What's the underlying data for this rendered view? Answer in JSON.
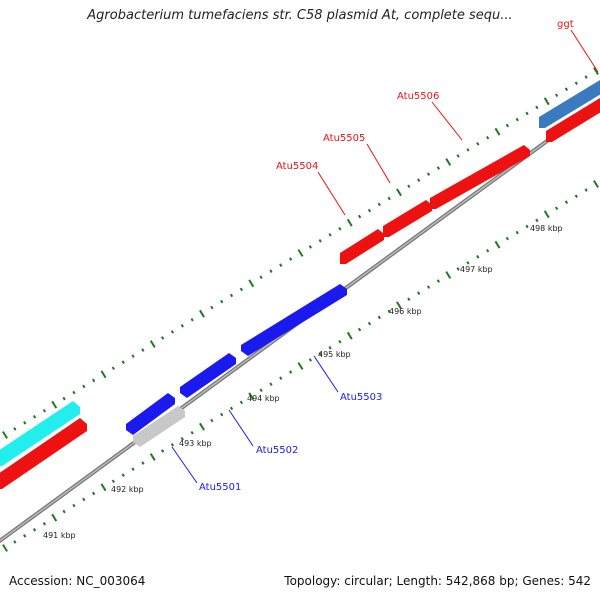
{
  "title": "Agrobacterium tumefaciens str. C58 plasmid At, complete sequ...",
  "footer": {
    "accession": "Accession: NC_003064",
    "summary": "Topology: circular; Length: 542,868 bp; Genes: 542"
  },
  "colors": {
    "forward_cds": "#ee1111",
    "reverse_cds": "#1a1aee",
    "rna": "#3a7bbf",
    "other": "#c8c8c8",
    "misc": "#22eeee",
    "backbone": "#888888",
    "ticks": "#1f7a1f"
  },
  "scale_labels": [
    "491 kbp",
    "492 kbp",
    "493 kbp",
    "494 kbp",
    "495 kbp",
    "496 kbp",
    "497 kbp",
    "498 kbp"
  ],
  "gene_labels": [
    {
      "name": "Atu5506",
      "strand": "forward"
    },
    {
      "name": "Atu5505",
      "strand": "forward"
    },
    {
      "name": "Atu5504",
      "strand": "forward"
    },
    {
      "name": "ggt",
      "strand": "forward"
    },
    {
      "name": "Atu5503",
      "strand": "reverse"
    },
    {
      "name": "Atu5502",
      "strand": "reverse"
    },
    {
      "name": "Atu5501",
      "strand": "reverse"
    }
  ]
}
